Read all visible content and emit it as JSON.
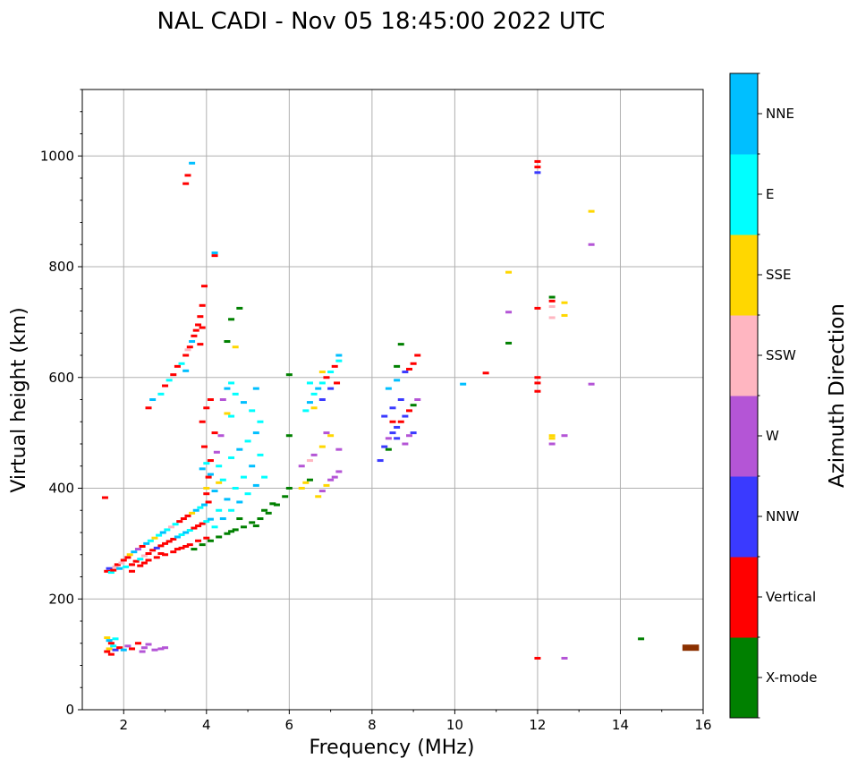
{
  "chart_data": {
    "type": "scatter",
    "title": "NAL CADI - Nov 05 18:45:00 2022 UTC",
    "xlabel": "Frequency (MHz)",
    "ylabel": "Virtual height (km)",
    "xlim": [
      1,
      16
    ],
    "ylim": [
      0,
      1120
    ],
    "xticks": [
      2,
      4,
      6,
      8,
      10,
      12,
      14,
      16
    ],
    "yticks": [
      0,
      200,
      400,
      600,
      800,
      1000
    ],
    "grid": true,
    "colorbar": {
      "title": "Azimuth Direction",
      "categories": [
        {
          "name": "X-mode",
          "color": "#008000"
        },
        {
          "name": "Vertical",
          "color": "#ff0000"
        },
        {
          "name": "NNW",
          "color": "#3a3aff"
        },
        {
          "name": "W",
          "color": "#b455d6"
        },
        {
          "name": "SSW",
          "color": "#ffb6c1"
        },
        {
          "name": "SSE",
          "color": "#ffd700"
        },
        {
          "name": "E",
          "color": "#00ffff"
        },
        {
          "name": "NNE",
          "color": "#00bfff"
        }
      ]
    },
    "extra_colors": {
      "brown": "#8b3000",
      "teal": "#008080",
      "gray": "#555555"
    },
    "points": [
      [
        1.55,
        383,
        "Vertical"
      ],
      [
        1.6,
        250,
        "Vertical"
      ],
      [
        1.65,
        255,
        "NNW"
      ],
      [
        1.7,
        248,
        "E"
      ],
      [
        1.75,
        252,
        "Vertical"
      ],
      [
        1.8,
        258,
        "SSW"
      ],
      [
        1.85,
        262,
        "Vertical"
      ],
      [
        1.9,
        255,
        "NNE"
      ],
      [
        1.95,
        265,
        "SSW"
      ],
      [
        2.0,
        270,
        "Vertical"
      ],
      [
        2.05,
        258,
        "E"
      ],
      [
        2.1,
        275,
        "Vertical"
      ],
      [
        2.15,
        280,
        "SSE"
      ],
      [
        2.2,
        262,
        "Vertical"
      ],
      [
        2.25,
        285,
        "NNE"
      ],
      [
        2.3,
        268,
        "Vertical"
      ],
      [
        2.35,
        290,
        "W"
      ],
      [
        2.4,
        272,
        "E"
      ],
      [
        2.45,
        295,
        "Vertical"
      ],
      [
        2.5,
        278,
        "SSW"
      ],
      [
        2.55,
        300,
        "NNE"
      ],
      [
        2.6,
        282,
        "Vertical"
      ],
      [
        2.65,
        305,
        "E"
      ],
      [
        2.7,
        288,
        "Vertical"
      ],
      [
        2.75,
        310,
        "SSE"
      ],
      [
        2.8,
        292,
        "NNW"
      ],
      [
        2.85,
        315,
        "E"
      ],
      [
        2.9,
        296,
        "Vertical"
      ],
      [
        2.95,
        320,
        "NNE"
      ],
      [
        3.0,
        300,
        "Vertical"
      ],
      [
        3.05,
        325,
        "E"
      ],
      [
        3.1,
        304,
        "Vertical"
      ],
      [
        3.15,
        330,
        "SSW"
      ],
      [
        3.2,
        308,
        "Vertical"
      ],
      [
        3.25,
        335,
        "E"
      ],
      [
        3.3,
        312,
        "NNE"
      ],
      [
        3.35,
        340,
        "Vertical"
      ],
      [
        3.4,
        316,
        "E"
      ],
      [
        3.45,
        345,
        "Vertical"
      ],
      [
        3.5,
        320,
        "NNE"
      ],
      [
        3.55,
        350,
        "Vertical"
      ],
      [
        3.6,
        324,
        "E"
      ],
      [
        3.65,
        355,
        "SSE"
      ],
      [
        3.7,
        328,
        "Vertical"
      ],
      [
        3.75,
        360,
        "NNE"
      ],
      [
        3.8,
        332,
        "Vertical"
      ],
      [
        3.85,
        365,
        "E"
      ],
      [
        3.9,
        336,
        "Vertical"
      ],
      [
        3.95,
        370,
        "NNE"
      ],
      [
        4.0,
        340,
        "E"
      ],
      [
        4.05,
        375,
        "Vertical"
      ],
      [
        4.1,
        344,
        "NNE"
      ],
      [
        2.2,
        250,
        "Vertical"
      ],
      [
        2.4,
        260,
        "Vertical"
      ],
      [
        2.6,
        270,
        "Vertical"
      ],
      [
        2.8,
        275,
        "Vertical"
      ],
      [
        3.0,
        280,
        "Vertical"
      ],
      [
        3.2,
        285,
        "Vertical"
      ],
      [
        3.4,
        292,
        "Vertical"
      ],
      [
        3.6,
        298,
        "Vertical"
      ],
      [
        3.8,
        305,
        "Vertical"
      ],
      [
        4.0,
        310,
        "Vertical"
      ],
      [
        3.3,
        290,
        "Vertical"
      ],
      [
        3.5,
        295,
        "Vertical"
      ],
      [
        2.9,
        282,
        "Vertical"
      ],
      [
        2.5,
        265,
        "Vertical"
      ],
      [
        3.7,
        290,
        "X-mode"
      ],
      [
        3.9,
        298,
        "X-mode"
      ],
      [
        4.1,
        305,
        "X-mode"
      ],
      [
        4.3,
        312,
        "X-mode"
      ],
      [
        4.5,
        318,
        "X-mode"
      ],
      [
        4.7,
        325,
        "X-mode"
      ],
      [
        4.9,
        330,
        "X-mode"
      ],
      [
        5.1,
        338,
        "X-mode"
      ],
      [
        5.3,
        345,
        "X-mode"
      ],
      [
        5.5,
        355,
        "X-mode"
      ],
      [
        5.7,
        370,
        "X-mode"
      ],
      [
        5.9,
        385,
        "X-mode"
      ],
      [
        6.0,
        400,
        "X-mode"
      ],
      [
        6.0,
        495,
        "X-mode"
      ],
      [
        6.0,
        605,
        "X-mode"
      ],
      [
        5.2,
        332,
        "X-mode"
      ],
      [
        5.4,
        360,
        "X-mode"
      ],
      [
        5.6,
        372,
        "X-mode"
      ],
      [
        4.6,
        322,
        "X-mode"
      ],
      [
        4.8,
        345,
        "X-mode"
      ],
      [
        4.2,
        330,
        "E"
      ],
      [
        4.4,
        345,
        "NNE"
      ],
      [
        4.6,
        360,
        "E"
      ],
      [
        4.8,
        375,
        "NNE"
      ],
      [
        5.0,
        390,
        "E"
      ],
      [
        5.2,
        405,
        "NNE"
      ],
      [
        5.4,
        420,
        "E"
      ],
      [
        4.3,
        360,
        "E"
      ],
      [
        4.5,
        380,
        "NNE"
      ],
      [
        4.7,
        400,
        "E"
      ],
      [
        4.9,
        420,
        "E"
      ],
      [
        5.1,
        440,
        "NNE"
      ],
      [
        5.3,
        460,
        "E"
      ],
      [
        4.2,
        395,
        "NNE"
      ],
      [
        4.4,
        415,
        "E"
      ],
      [
        4.1,
        425,
        "NNE"
      ],
      [
        4.0,
        445,
        "E"
      ],
      [
        3.9,
        435,
        "NNE"
      ],
      [
        4.3,
        440,
        "E"
      ],
      [
        4.6,
        455,
        "E"
      ],
      [
        4.8,
        470,
        "NNE"
      ],
      [
        5.0,
        485,
        "E"
      ],
      [
        5.2,
        500,
        "NNE"
      ],
      [
        5.3,
        520,
        "E"
      ],
      [
        5.1,
        540,
        "E"
      ],
      [
        4.9,
        555,
        "NNE"
      ],
      [
        4.7,
        570,
        "E"
      ],
      [
        4.5,
        580,
        "NNE"
      ],
      [
        5.2,
        580,
        "NNE"
      ],
      [
        4.6,
        530,
        "E"
      ],
      [
        4.0,
        390,
        "Vertical"
      ],
      [
        4.05,
        420,
        "Vertical"
      ],
      [
        4.1,
        450,
        "Vertical"
      ],
      [
        3.95,
        475,
        "Vertical"
      ],
      [
        4.2,
        500,
        "Vertical"
      ],
      [
        3.9,
        520,
        "Vertical"
      ],
      [
        4.0,
        545,
        "Vertical"
      ],
      [
        4.1,
        560,
        "Vertical"
      ],
      [
        4.25,
        465,
        "W"
      ],
      [
        4.35,
        495,
        "W"
      ],
      [
        4.0,
        400,
        "SSE"
      ],
      [
        4.3,
        410,
        "SSE"
      ],
      [
        4.4,
        560,
        "W"
      ],
      [
        4.5,
        535,
        "SSE"
      ],
      [
        4.6,
        590,
        "E"
      ],
      [
        3.3,
        620,
        "Vertical"
      ],
      [
        3.4,
        625,
        "E"
      ],
      [
        3.5,
        640,
        "Vertical"
      ],
      [
        3.55,
        650,
        "SSW"
      ],
      [
        3.6,
        655,
        "Vertical"
      ],
      [
        3.65,
        665,
        "NNE"
      ],
      [
        3.7,
        675,
        "Vertical"
      ],
      [
        3.75,
        685,
        "Vertical"
      ],
      [
        3.8,
        695,
        "Vertical"
      ],
      [
        3.85,
        710,
        "Vertical"
      ],
      [
        3.9,
        730,
        "Vertical"
      ],
      [
        3.95,
        765,
        "Vertical"
      ],
      [
        3.9,
        690,
        "Vertical"
      ],
      [
        3.85,
        660,
        "Vertical"
      ],
      [
        3.5,
        612,
        "NNE"
      ],
      [
        3.2,
        605,
        "Vertical"
      ],
      [
        3.0,
        585,
        "Vertical"
      ],
      [
        2.9,
        570,
        "E"
      ],
      [
        2.6,
        545,
        "Vertical"
      ],
      [
        2.7,
        560,
        "NNE"
      ],
      [
        3.1,
        595,
        "E"
      ],
      [
        3.5,
        950,
        "Vertical"
      ],
      [
        3.55,
        965,
        "Vertical"
      ],
      [
        3.65,
        987,
        "NNE"
      ],
      [
        4.2,
        825,
        "NNE"
      ],
      [
        4.2,
        820,
        "Vertical"
      ],
      [
        4.5,
        665,
        "X-mode"
      ],
      [
        4.6,
        705,
        "X-mode"
      ],
      [
        4.8,
        725,
        "X-mode"
      ],
      [
        4.7,
        655,
        "SSE"
      ],
      [
        6.3,
        400,
        "SSE"
      ],
      [
        6.4,
        410,
        "SSE"
      ],
      [
        6.5,
        415,
        "X-mode"
      ],
      [
        6.3,
        440,
        "W"
      ],
      [
        6.5,
        450,
        "SSW"
      ],
      [
        6.7,
        385,
        "SSE"
      ],
      [
        6.8,
        395,
        "W"
      ],
      [
        6.9,
        405,
        "SSE"
      ],
      [
        7.0,
        415,
        "W"
      ],
      [
        7.1,
        420,
        "W"
      ],
      [
        7.2,
        430,
        "W"
      ],
      [
        6.6,
        460,
        "W"
      ],
      [
        6.8,
        475,
        "SSE"
      ],
      [
        7.0,
        495,
        "SSE"
      ],
      [
        7.2,
        470,
        "W"
      ],
      [
        6.9,
        500,
        "W"
      ],
      [
        6.4,
        540,
        "E"
      ],
      [
        6.5,
        555,
        "NNE"
      ],
      [
        6.6,
        570,
        "E"
      ],
      [
        6.7,
        580,
        "NNE"
      ],
      [
        6.8,
        590,
        "E"
      ],
      [
        6.9,
        600,
        "Vertical"
      ],
      [
        7.0,
        610,
        "E"
      ],
      [
        7.1,
        620,
        "Vertical"
      ],
      [
        7.2,
        630,
        "E"
      ],
      [
        7.15,
        590,
        "Vertical"
      ],
      [
        7.0,
        580,
        "NNW"
      ],
      [
        6.8,
        560,
        "NNW"
      ],
      [
        6.6,
        545,
        "SSE"
      ],
      [
        6.8,
        610,
        "SSE"
      ],
      [
        7.2,
        640,
        "NNE"
      ],
      [
        6.5,
        590,
        "E"
      ],
      [
        8.2,
        450,
        "NNW"
      ],
      [
        8.3,
        475,
        "NNW"
      ],
      [
        8.4,
        490,
        "W"
      ],
      [
        8.5,
        500,
        "NNW"
      ],
      [
        8.6,
        510,
        "NNW"
      ],
      [
        8.7,
        520,
        "Vertical"
      ],
      [
        8.8,
        530,
        "NNW"
      ],
      [
        8.9,
        540,
        "Vertical"
      ],
      [
        9.0,
        550,
        "X-mode"
      ],
      [
        9.1,
        560,
        "W"
      ],
      [
        8.4,
        470,
        "X-mode"
      ],
      [
        8.6,
        490,
        "NNW"
      ],
      [
        8.8,
        480,
        "W"
      ],
      [
        9.0,
        500,
        "NNW"
      ],
      [
        8.3,
        530,
        "NNW"
      ],
      [
        8.5,
        545,
        "NNW"
      ],
      [
        8.7,
        560,
        "NNW"
      ],
      [
        8.4,
        580,
        "NNE"
      ],
      [
        8.6,
        595,
        "NNE"
      ],
      [
        8.8,
        610,
        "NNW"
      ],
      [
        9.0,
        625,
        "Vertical"
      ],
      [
        9.1,
        640,
        "Vertical"
      ],
      [
        8.7,
        660,
        "X-mode"
      ],
      [
        8.6,
        620,
        "X-mode"
      ],
      [
        8.9,
        615,
        "Vertical"
      ],
      [
        8.5,
        520,
        "Vertical"
      ],
      [
        8.9,
        495,
        "W"
      ],
      [
        10.2,
        588,
        "NNE"
      ],
      [
        10.75,
        608,
        "Vertical"
      ],
      [
        11.3,
        790,
        "SSE"
      ],
      [
        11.3,
        718,
        "W"
      ],
      [
        11.3,
        662,
        "X-mode"
      ],
      [
        12.0,
        990,
        "Vertical"
      ],
      [
        12.0,
        980,
        "Vertical"
      ],
      [
        12.0,
        970,
        "NNW"
      ],
      [
        12.0,
        725,
        "Vertical"
      ],
      [
        12.0,
        600,
        "Vertical"
      ],
      [
        12.0,
        590,
        "Vertical"
      ],
      [
        12.0,
        575,
        "Vertical"
      ],
      [
        12.35,
        745,
        "X-mode"
      ],
      [
        12.35,
        738,
        "Vertical"
      ],
      [
        12.35,
        728,
        "SSW"
      ],
      [
        12.35,
        708,
        "SSW"
      ],
      [
        12.65,
        735,
        "SSE"
      ],
      [
        12.65,
        712,
        "SSE"
      ],
      [
        12.35,
        495,
        "SSE"
      ],
      [
        12.35,
        490,
        "SSE"
      ],
      [
        12.35,
        480,
        "W"
      ],
      [
        12.65,
        495,
        "W"
      ],
      [
        13.3,
        900,
        "SSE"
      ],
      [
        13.3,
        840,
        "W"
      ],
      [
        13.3,
        588,
        "W"
      ],
      [
        12.0,
        93,
        "Vertical"
      ],
      [
        12.65,
        93,
        "W"
      ],
      [
        14.5,
        128,
        "X-mode"
      ],
      [
        1.6,
        130,
        "SSE"
      ],
      [
        1.65,
        125,
        "NNE"
      ],
      [
        1.7,
        120,
        "Vertical"
      ],
      [
        1.75,
        115,
        "E"
      ],
      [
        1.6,
        105,
        "Vertical"
      ],
      [
        1.65,
        110,
        "SSE"
      ],
      [
        1.7,
        100,
        "Vertical"
      ],
      [
        1.8,
        108,
        "NNW"
      ],
      [
        1.9,
        112,
        "Vertical"
      ],
      [
        2.0,
        108,
        "NNE"
      ],
      [
        2.1,
        115,
        "W"
      ],
      [
        2.2,
        110,
        "Vertical"
      ],
      [
        2.35,
        120,
        "Vertical"
      ],
      [
        2.5,
        112,
        "W"
      ],
      [
        2.6,
        118,
        "W"
      ],
      [
        2.75,
        108,
        "W"
      ],
      [
        2.9,
        110,
        "W"
      ],
      [
        3.0,
        112,
        "W"
      ],
      [
        1.8,
        128,
        "E"
      ],
      [
        2.45,
        105,
        "W"
      ]
    ],
    "brown_bar": {
      "x": [
        15.5,
        15.9
      ],
      "y": 112
    }
  }
}
